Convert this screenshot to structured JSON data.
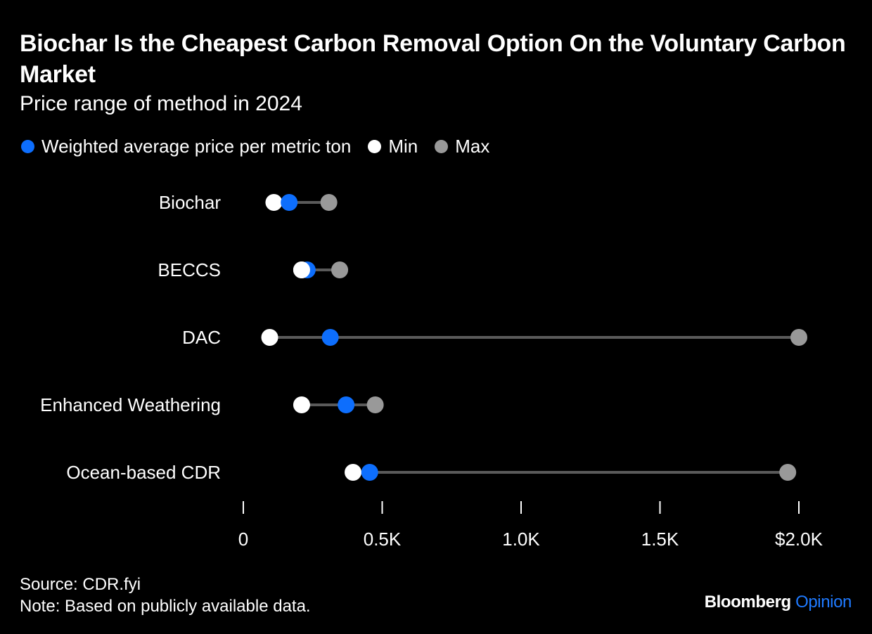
{
  "title": "Biochar Is the Cheapest Carbon Removal Option On the Voluntary Carbon Market",
  "subtitle": "Price range of method in 2024",
  "legend": {
    "weighted": "Weighted average price per metric ton",
    "min": "Min",
    "max": "Max"
  },
  "colors": {
    "weighted": "#0d6efd",
    "min": "#ffffff",
    "max": "#999999",
    "range_line": "#5a5a5a"
  },
  "footer": {
    "source": "Source: CDR.fyi",
    "note": "Note: Based on publicly available data."
  },
  "brand": {
    "name": "Bloomberg",
    "section": "Opinion"
  },
  "chart_data": {
    "type": "dumbbell",
    "categories": [
      "Biochar",
      "BECCS",
      "DAC",
      "Enhanced Weathering",
      "Ocean-based CDR"
    ],
    "series": [
      {
        "name": "Weighted average price per metric ton",
        "values": [
          165,
          230,
          313,
          370,
          455
        ]
      },
      {
        "name": "Min",
        "values": [
          110,
          210,
          95,
          210,
          395
        ]
      },
      {
        "name": "Max",
        "values": [
          308,
          347,
          2000,
          475,
          1960
        ]
      }
    ],
    "xlim": [
      0,
      2000
    ],
    "xticks": [
      0,
      500,
      1000,
      1500,
      2000
    ],
    "xtick_labels": [
      "0",
      "0.5K",
      "1.0K",
      "1.5K",
      "$2.0K"
    ],
    "legend_position": "top-left",
    "grid": false
  }
}
